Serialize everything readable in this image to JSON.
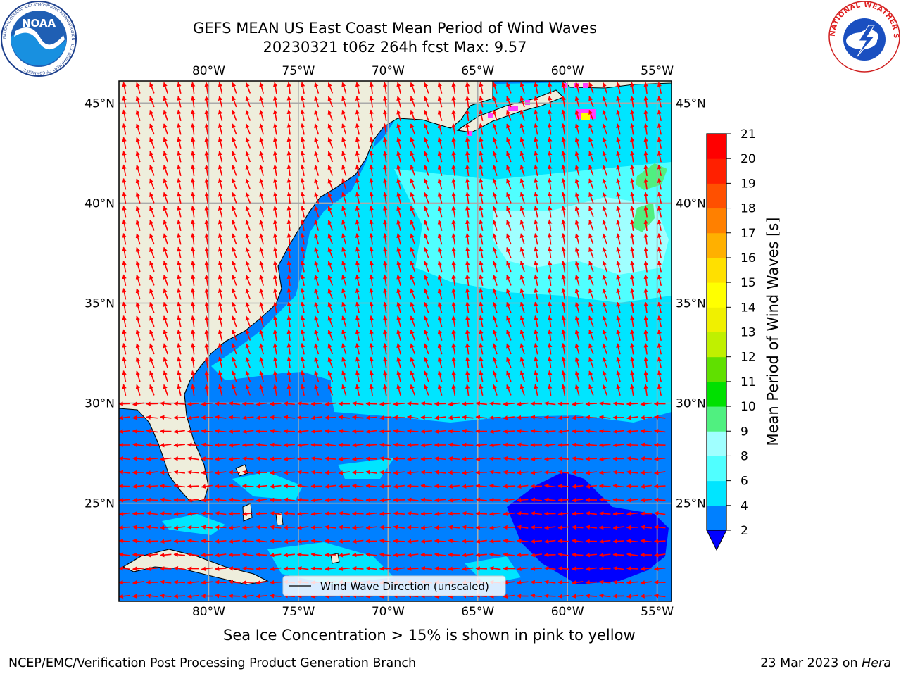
{
  "header": {
    "title": "GEFS MEAN US East Coast Mean Period of Wind Waves",
    "subtitle": "20230321 t06z 264h fcst   Max: 9.57"
  },
  "map": {
    "lon_ticks": [
      "80°W",
      "75°W",
      "70°W",
      "65°W",
      "60°W",
      "55°W"
    ],
    "lat_ticks": [
      "45°N",
      "40°N",
      "35°N",
      "30°N",
      "25°N"
    ],
    "lon_values": [
      -80,
      -75,
      -70,
      -65,
      -60,
      -55
    ],
    "lat_values": [
      45,
      40,
      35,
      30,
      25
    ],
    "lon_range": [
      -85,
      -54.2
    ],
    "lat_range": [
      20.1,
      46.1
    ],
    "legend_label": "Wind Wave Direction (unscaled)",
    "land_color": "#eeeedc",
    "arrow_color": "#ff0000"
  },
  "colorbar": {
    "label": "Mean Period of Wind Waves [s]",
    "ticks": [
      "2",
      "4",
      "6",
      "8",
      "9",
      "10",
      "11",
      "12",
      "13",
      "14",
      "15",
      "16",
      "17",
      "18",
      "19",
      "20",
      "21"
    ],
    "colors": [
      "#0080ff",
      "#00e5ff",
      "#50ffff",
      "#a0ffff",
      "#50f080",
      "#00e000",
      "#60e000",
      "#c0f000",
      "#f0f000",
      "#ffff00",
      "#ffe000",
      "#ffb000",
      "#ff8000",
      "#ff5000",
      "#ff2000",
      "#ff0000"
    ],
    "under_color": "#0000ff"
  },
  "footer": {
    "ice_note": "Sea Ice Concentration > 15% is shown in pink to yellow",
    "branch": "NCEP/EMC/Verification Post Processing Product Generation Branch",
    "date": "23 Mar 2023 on",
    "machine": "Hera"
  },
  "logos": {
    "noaa_text": "NOAA",
    "noaa_ring": "NATIONAL OCEANIC AND ATMOSPHERIC ADMINISTRATION · U.S. DEPARTMENT OF COMMERCE",
    "nws_ring": "NATIONAL WEATHER SERVICE"
  }
}
